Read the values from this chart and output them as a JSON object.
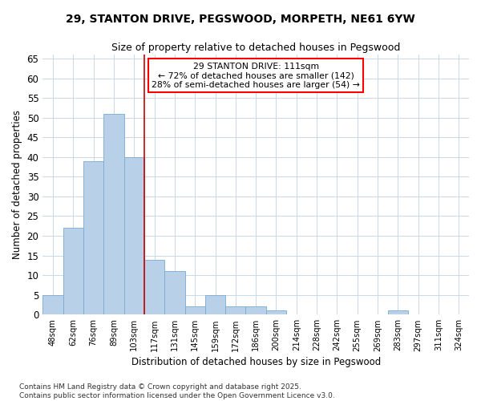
{
  "title_line1": "29, STANTON DRIVE, PEGSWOOD, MORPETH, NE61 6YW",
  "title_line2": "Size of property relative to detached houses in Pegswood",
  "xlabel": "Distribution of detached houses by size in Pegswood",
  "ylabel": "Number of detached properties",
  "categories": [
    "48sqm",
    "62sqm",
    "76sqm",
    "89sqm",
    "103sqm",
    "117sqm",
    "131sqm",
    "145sqm",
    "159sqm",
    "172sqm",
    "186sqm",
    "200sqm",
    "214sqm",
    "228sqm",
    "242sqm",
    "255sqm",
    "269sqm",
    "283sqm",
    "297sqm",
    "311sqm",
    "324sqm"
  ],
  "values": [
    5,
    22,
    39,
    51,
    40,
    14,
    11,
    2,
    5,
    2,
    2,
    1,
    0,
    0,
    0,
    0,
    0,
    1,
    0,
    0,
    0
  ],
  "bar_color": "#b8d0e8",
  "bar_edge_color": "#7aaacf",
  "background_color": "#ffffff",
  "grid_color": "#c8d8ea",
  "vline_x_idx": 5,
  "vline_color": "#cc0000",
  "annotation_line1": "29 STANTON DRIVE: 111sqm",
  "annotation_line2": "← 72% of detached houses are smaller (142)",
  "annotation_line3": "28% of semi-detached houses are larger (54) →",
  "ylim": [
    0,
    66
  ],
  "yticks": [
    0,
    5,
    10,
    15,
    20,
    25,
    30,
    35,
    40,
    45,
    50,
    55,
    60,
    65
  ],
  "footer_line1": "Contains HM Land Registry data © Crown copyright and database right 2025.",
  "footer_line2": "Contains public sector information licensed under the Open Government Licence v3.0."
}
